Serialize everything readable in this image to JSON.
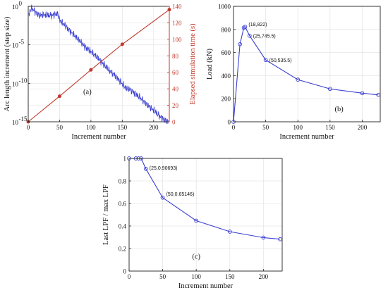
{
  "colors": {
    "blue": "#3a3fd0",
    "red": "#c0392b",
    "axis": "#222222",
    "grid": "#e6e6e6"
  },
  "chart_data": [
    {
      "id": "a",
      "type": "line",
      "panel_label": "(a)",
      "xlabel": "Increment number",
      "ylabel": "Arc length increment (step size)",
      "y2label": "Elapsed simulation time (s)",
      "xlim": [
        0,
        225
      ],
      "xticks": [
        0,
        50,
        100,
        150,
        200
      ],
      "yscale": "log",
      "ylim_exp": [
        -15,
        0
      ],
      "yticks_exp": [
        -15,
        -10,
        -5,
        0
      ],
      "y2lim": [
        0,
        140
      ],
      "y2ticks": [
        0,
        20,
        40,
        60,
        80,
        100,
        120,
        140
      ],
      "grid": true,
      "series": [
        {
          "axis": "left",
          "color": "#3a3fd0",
          "trend": [
            [
              1,
              -1.2
            ],
            [
              3,
              -0.5
            ],
            [
              6,
              -0.3
            ],
            [
              9,
              -0.5
            ],
            [
              12,
              -0.8
            ],
            [
              14,
              -0.9
            ],
            [
              18,
              -1.2
            ],
            [
              25,
              -1.1
            ],
            [
              35,
              -1.2
            ],
            [
              45,
              -1.0
            ],
            [
              48,
              -1.05
            ],
            [
              50,
              -1.8
            ],
            [
              60,
              -2.6
            ],
            [
              70,
              -3.5
            ],
            [
              80,
              -4.3
            ],
            [
              90,
              -5.2
            ],
            [
              100,
              -5.9
            ],
            [
              110,
              -6.6
            ],
            [
              120,
              -7.5
            ],
            [
              130,
              -8.4
            ],
            [
              140,
              -9.1
            ],
            [
              150,
              -10.1
            ],
            [
              155,
              -10.6
            ],
            [
              160,
              -10.7
            ],
            [
              170,
              -11.3
            ],
            [
              180,
              -12.0
            ],
            [
              190,
              -12.8
            ],
            [
              200,
              -13.5
            ],
            [
              210,
              -14.3
            ],
            [
              218,
              -14.8
            ],
            [
              224,
              -15.0
            ]
          ]
        },
        {
          "axis": "right",
          "color": "#c0392b",
          "marker": "circle",
          "x": [
            0,
            50,
            100,
            150,
            225
          ],
          "y": [
            0,
            31,
            63,
            94,
            136
          ]
        }
      ]
    },
    {
      "id": "b",
      "type": "line",
      "panel_label": "(b)",
      "xlabel": "Increment number",
      "ylabel": "Load (kN)",
      "xlim": [
        0,
        228
      ],
      "xticks": [
        0,
        50,
        100,
        150,
        200
      ],
      "ylim": [
        0,
        1000
      ],
      "yticks": [
        0,
        200,
        400,
        600,
        800,
        1000
      ],
      "grid": true,
      "series": [
        {
          "color": "#3a3fd0",
          "marker": "circle",
          "x": [
            0,
            10,
            16,
            18,
            25,
            50,
            100,
            150,
            200,
            225
          ],
          "y": [
            0,
            672,
            815,
            822,
            745.5,
            535.5,
            365,
            285,
            248,
            233
          ]
        }
      ],
      "annotations": [
        {
          "x": 18,
          "y": 822,
          "text": "(18,822)"
        },
        {
          "x": 25,
          "y": 745.5,
          "text": "(25,745.5)"
        },
        {
          "x": 50,
          "y": 535.5,
          "text": "(50,535.5)"
        }
      ]
    },
    {
      "id": "c",
      "type": "line",
      "panel_label": "(c)",
      "xlabel": "Increment number",
      "ylabel": "Last LPF / max LPF",
      "xlim": [
        0,
        228
      ],
      "xticks": [
        0,
        50,
        100,
        150,
        200
      ],
      "ylim": [
        0,
        1
      ],
      "yticks": [
        0,
        0.2,
        0.4,
        0.6,
        0.8,
        1
      ],
      "grid": true,
      "series": [
        {
          "color": "#3a3fd0",
          "marker": "circle",
          "x": [
            0,
            10,
            14,
            18,
            25,
            50,
            100,
            150,
            200,
            225
          ],
          "y": [
            1,
            1,
            1,
            1,
            0.90693,
            0.65146,
            0.447,
            0.35,
            0.297,
            0.283
          ]
        }
      ],
      "annotations": [
        {
          "x": 25,
          "y": 0.90693,
          "text": "(25,0.90693)"
        },
        {
          "x": 50,
          "y": 0.65146,
          "text": "(50,0.65146)"
        }
      ]
    }
  ]
}
